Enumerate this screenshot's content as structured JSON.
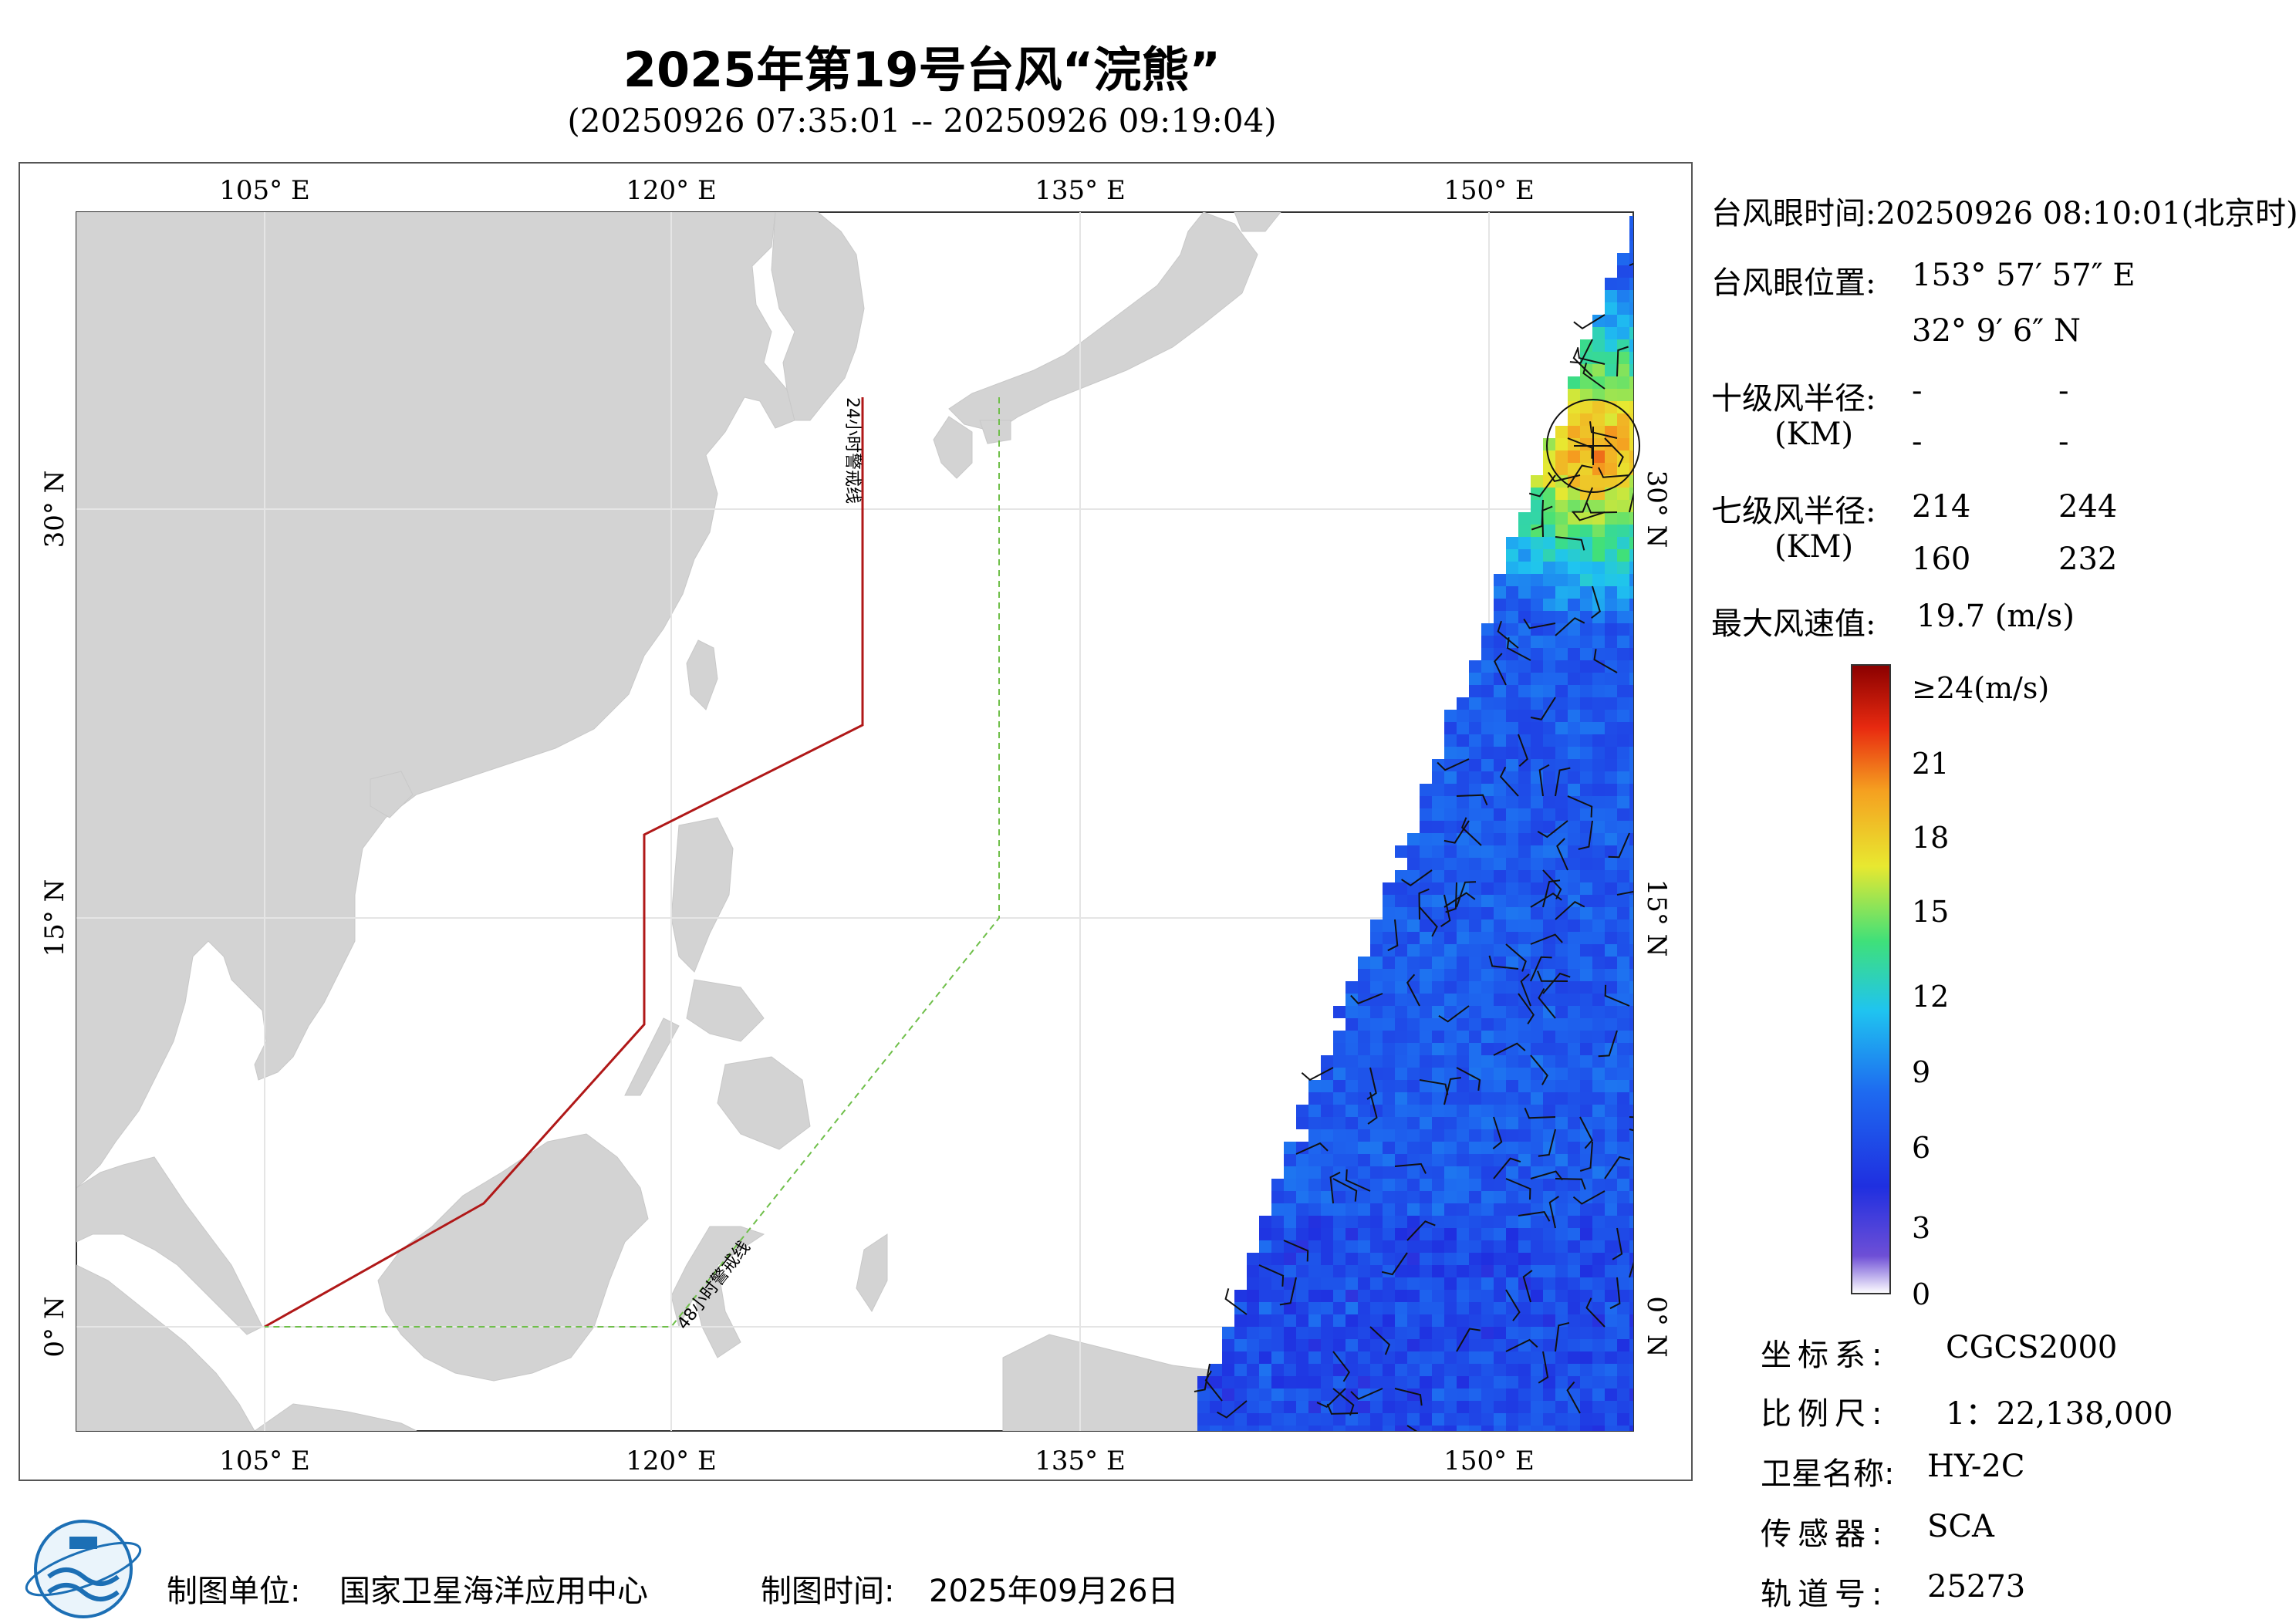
{
  "title": "2025年第19号台风“浣熊”",
  "subtitle": "(20250926 07:35:01 -- 20250926 09:19:04)",
  "map": {
    "lon_labels": [
      "105° E",
      "120° E",
      "135° E",
      "150° E"
    ],
    "lat_labels": [
      "30° N",
      "15° N",
      "0° N"
    ],
    "warning_line_24h": "24小时警戒线",
    "warning_line_48h": "48小时警戒线",
    "colors": {
      "land": "#d3d3d3",
      "ocean": "#ffffff",
      "line_24h": "#b01818",
      "line_48h": "#6fbf4a",
      "eye_marker": "#111111"
    }
  },
  "info": {
    "eye_time_label": "台风眼时间:",
    "eye_time_value": "20250926 08:10:01(北京时)",
    "eye_pos_label": "台风眼位置:",
    "eye_lon": "153° 57′ 57″ E",
    "eye_lat": "32° 9′ 6″ N",
    "r10_label": "十级风半径:",
    "r10_unit": "(KM)",
    "r10_values": [
      "-",
      "-",
      "-",
      "-"
    ],
    "r7_label": "七级风半径:",
    "r7_unit": "(KM)",
    "r7_values": [
      "214",
      "244",
      "160",
      "232"
    ],
    "max_wind_label": "最大风速值:",
    "max_wind_value": "19.7  (m/s)"
  },
  "colorbar": {
    "labels": [
      "≥24(m/s)",
      "21",
      "18",
      "15",
      "12",
      "9",
      "6",
      "3",
      "0"
    ],
    "colors": [
      "#ffffff",
      "#6e4fd6",
      "#1f2fe0",
      "#1e6af0",
      "#1fc4f0",
      "#3fe07a",
      "#e8e830",
      "#f5a020",
      "#e82a10",
      "#8a0000"
    ]
  },
  "meta": {
    "crs_label": "坐标系:",
    "crs_value": "CGCS2000",
    "scale_label": "比例尺:",
    "scale_value": "1：22,138,000",
    "sat_label": "卫星名称:",
    "sat_value": "HY-2C",
    "sensor_label": "传感器:",
    "sensor_value": "SCA",
    "orbit_label": "轨道号:",
    "orbit_value": "25273"
  },
  "footer": {
    "producer_label": "制图单位:",
    "producer_value": "国家卫星海洋应用中心",
    "date_label": "制图时间:",
    "date_value": "2025年09月26日"
  }
}
